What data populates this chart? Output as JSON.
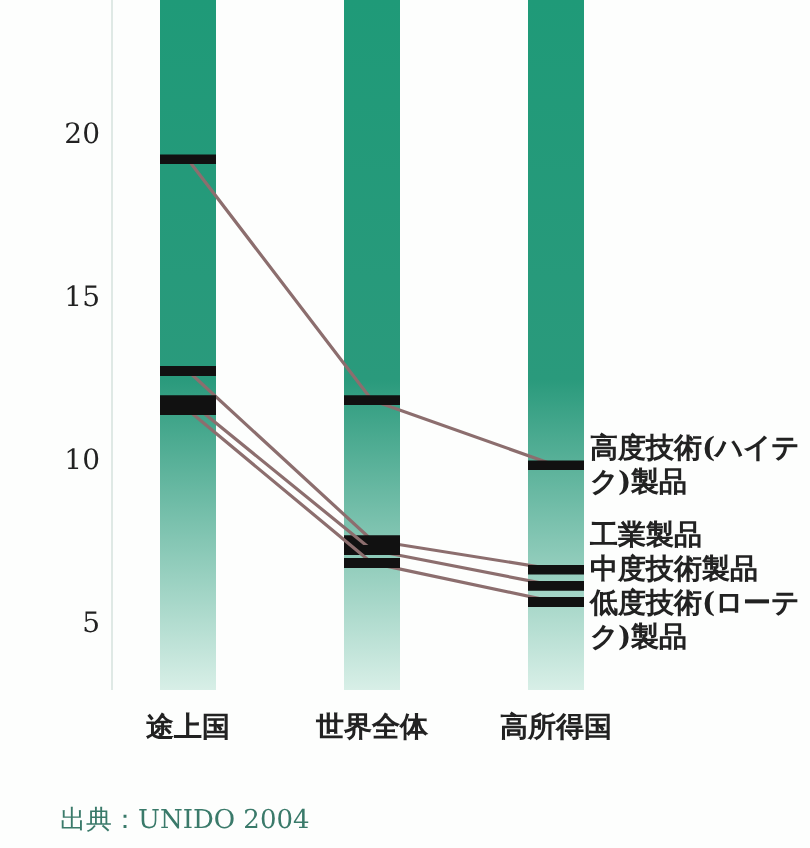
{
  "chart_data": {
    "type": "line",
    "categories": [
      "途上国",
      "世界全体",
      "高所得国"
    ],
    "series": [
      {
        "name": "高度技術(ハイテク)製品",
        "color": "#8c6e6e",
        "values": [
          19.2,
          11.8,
          9.8
        ]
      },
      {
        "name": "工業製品",
        "color": "#8c6e6e",
        "values": [
          12.7,
          7.5,
          6.6
        ]
      },
      {
        "name": "中度技術製品",
        "color": "#8c6e6e",
        "values": [
          11.8,
          7.2,
          6.1
        ]
      },
      {
        "name": "低度技術(ローテク)製品",
        "color": "#8c6e6e",
        "values": [
          11.5,
          6.8,
          5.6
        ]
      }
    ],
    "ylim": [
      2.9,
      24.1
    ],
    "yticks": [
      5,
      10,
      15,
      20
    ],
    "grid": "x",
    "legend": "right",
    "line_style": "solid",
    "annotations": [
      "出典：UNIDO 2004"
    ]
  }
}
